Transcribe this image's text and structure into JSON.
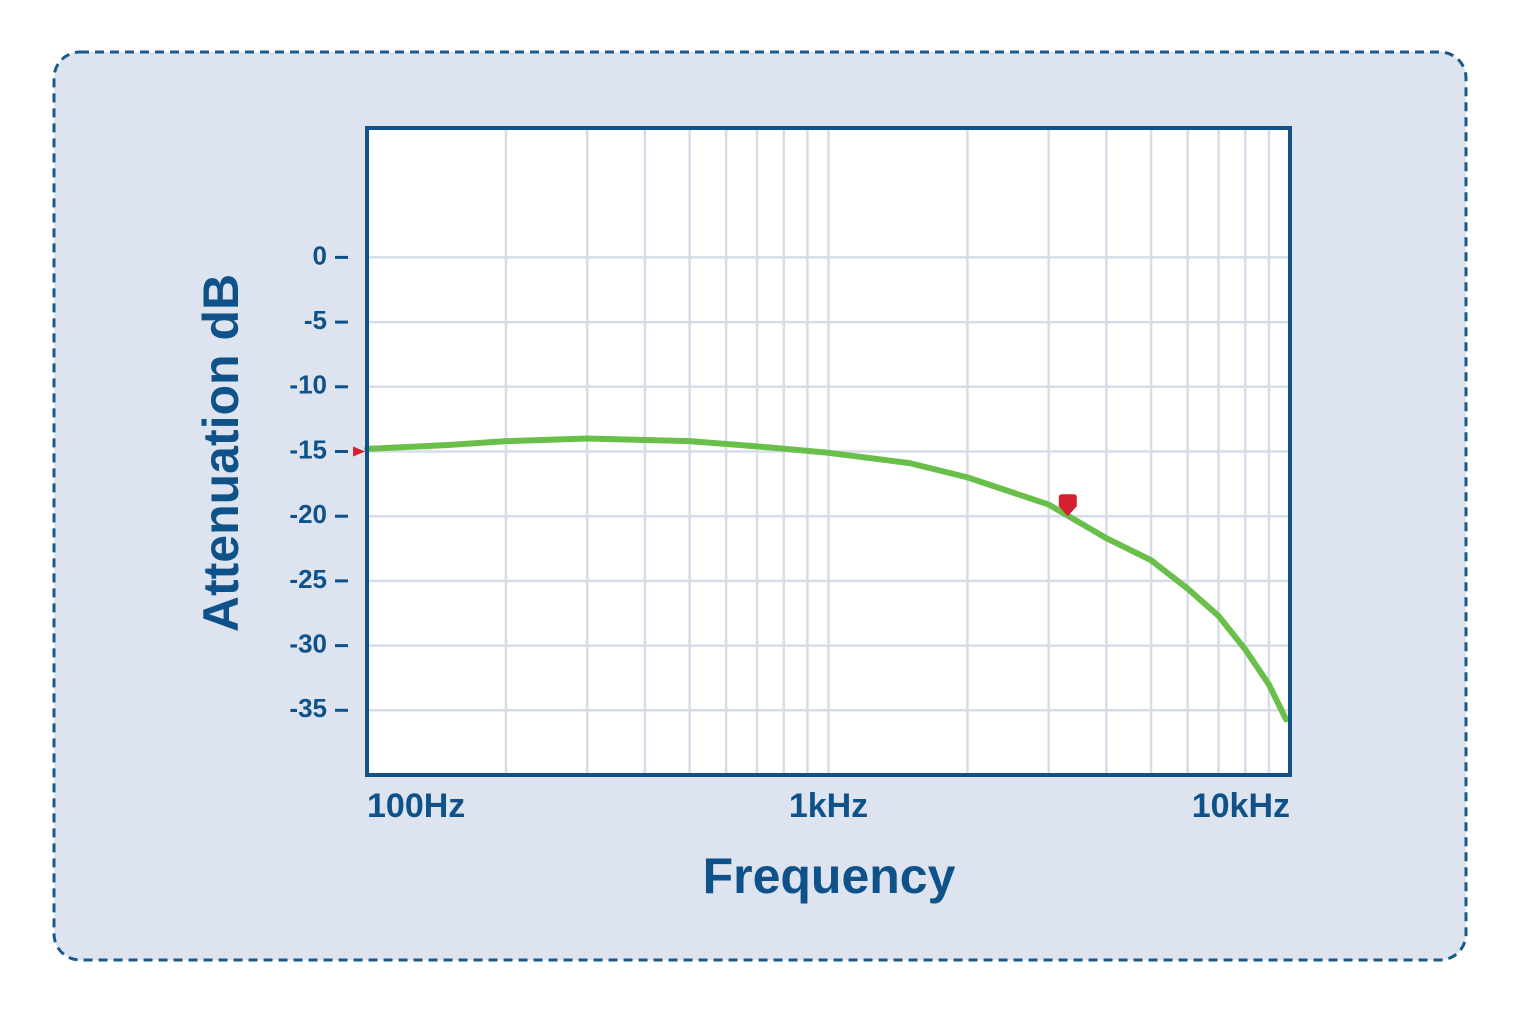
{
  "chart_data": {
    "type": "line",
    "x_label": "Frequency",
    "y_label": "Attenuation dB",
    "x_scale": "log",
    "xlim": [
      100,
      10000
    ],
    "xticks": [
      {
        "value": 100,
        "label": "100Hz"
      },
      {
        "value": 1000,
        "label": "1kHz"
      },
      {
        "value": 10000,
        "label": "10kHz"
      }
    ],
    "ylim": [
      -40,
      10
    ],
    "yticks": [
      0,
      -5,
      -10,
      -15,
      -20,
      -25,
      -30,
      -35
    ],
    "grid": true,
    "x": [
      100,
      150,
      200,
      300,
      500,
      700,
      1000,
      1500,
      2000,
      3000,
      4000,
      5000,
      6000,
      7000,
      8000,
      9000,
      9800
    ],
    "series": [
      {
        "color": "#6abf4b",
        "values": [
          -14.8,
          -14.5,
          -14.2,
          -14.0,
          -14.2,
          -14.6,
          -15.1,
          -15.9,
          -17.0,
          -19.1,
          -21.7,
          -23.4,
          -25.6,
          -27.7,
          -30.3,
          -33.0,
          -35.7
        ]
      }
    ],
    "y_indicator": -15,
    "markers": [
      {
        "x": 3300,
        "y": -20,
        "color": "#d42030"
      }
    ]
  }
}
